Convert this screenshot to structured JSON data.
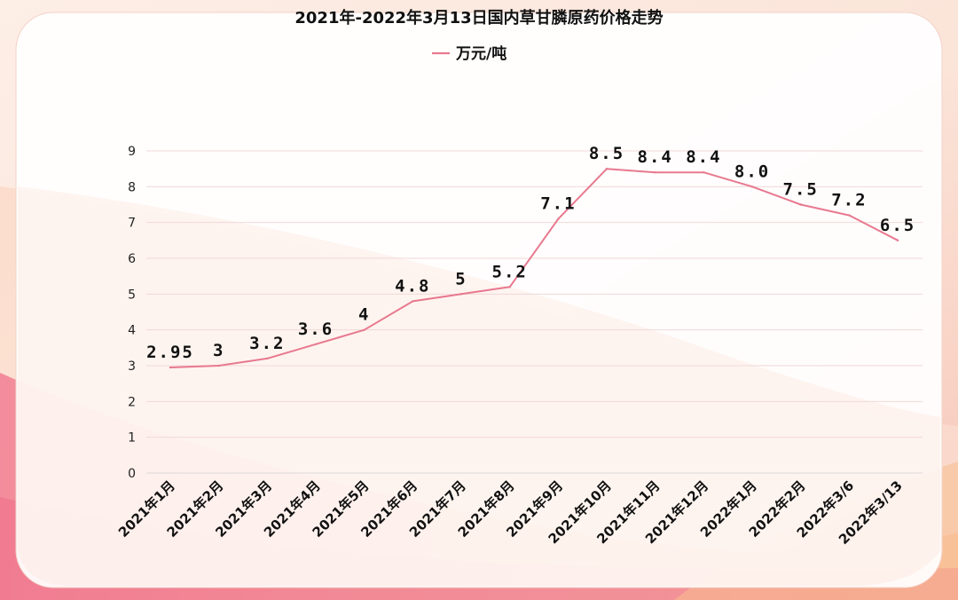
{
  "chart_data": {
    "type": "line",
    "title": "2021年-2022年3月13日国内草甘膦原药价格走势",
    "legend_position": "top-center",
    "grid": true,
    "categories": [
      "2021年1月",
      "2021年2月",
      "2021年3月",
      "2021年4月",
      "2021年5月",
      "2021年6月",
      "2021年7月",
      "2021年8月",
      "2021年9月",
      "2021年10月",
      "2021年11月",
      "2021年12月",
      "2022年1月",
      "2022年2月",
      "2022年3/6",
      "2022年3/13"
    ],
    "series": [
      {
        "name": "万元/吨",
        "values": [
          2.95,
          3,
          3.2,
          3.6,
          4,
          4.8,
          5,
          5.2,
          7.1,
          8.5,
          8.4,
          8.4,
          8.0,
          7.5,
          7.2,
          6.5
        ],
        "labels": [
          "2.95",
          "3",
          "3.2",
          "3.6",
          "4",
          "4.8",
          "5",
          "5.2",
          "7.1",
          "8.5",
          "8.4",
          "8.4",
          "8.0",
          "7.5",
          "7.2",
          "6.5"
        ],
        "color": "#e8798f"
      }
    ],
    "ylim": [
      0,
      9
    ],
    "yticks": [
      "0",
      "1",
      "2",
      "3",
      "4",
      "5",
      "6",
      "7",
      "8",
      "9"
    ],
    "xlabel": "",
    "ylabel": ""
  },
  "colors": {
    "line": "#e8798f",
    "grid": "#f0d8d8",
    "panel_border": "#f3d2c8"
  }
}
